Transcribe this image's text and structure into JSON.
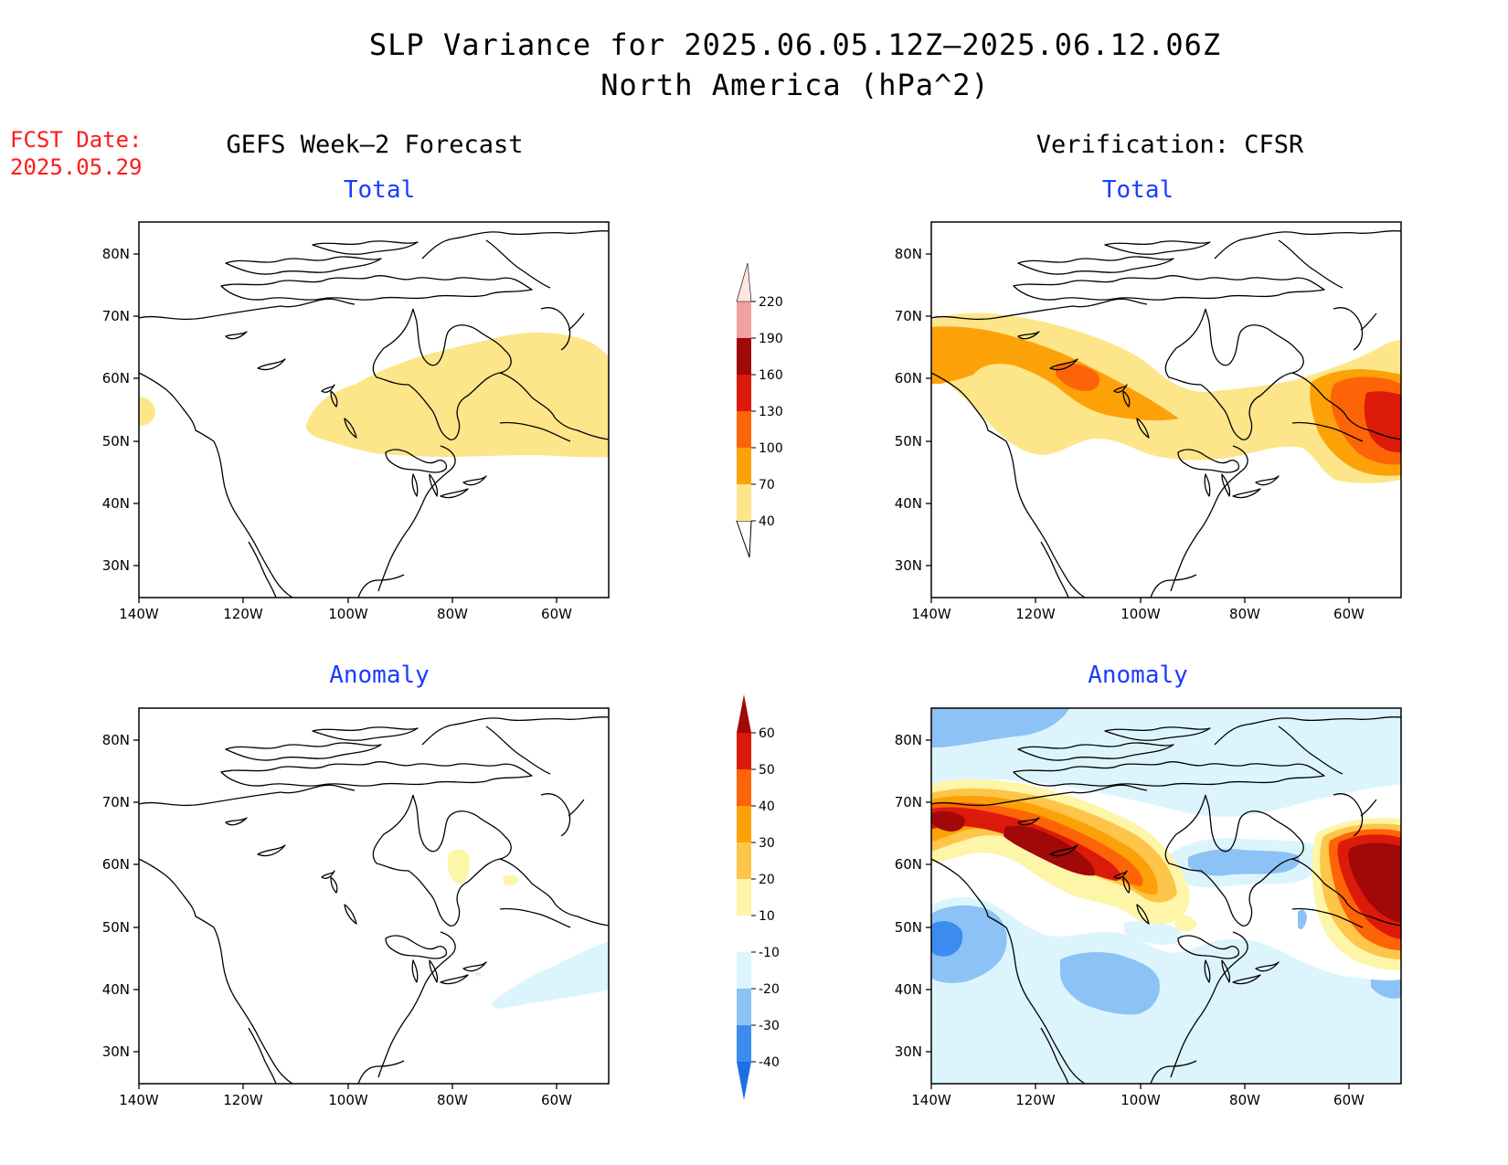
{
  "title": {
    "line1": "SLP Variance for 2025.06.05.12Z–2025.06.12.06Z",
    "line2": "North America (hPa^2)"
  },
  "fcst": {
    "label": "FCST Date:",
    "date": "2025.05.29"
  },
  "columns": {
    "left": "GEFS Week–2 Forecast",
    "right": "Verification: CFSR"
  },
  "panels": {
    "tl": "Total",
    "tr": "Total",
    "bl": "Anomaly",
    "br": "Anomaly"
  },
  "axes": {
    "lat_labels": [
      "80N",
      "70N",
      "60N",
      "50N",
      "40N",
      "30N"
    ],
    "lon_labels": [
      "140W",
      "120W",
      "100W",
      "80W",
      "60W"
    ]
  },
  "colorbar_total": {
    "levels": [
      "40",
      "70",
      "100",
      "130",
      "160",
      "190",
      "220"
    ],
    "colors": [
      "#fde58a",
      "#fda108",
      "#fd6408",
      "#dc1a0a",
      "#a10808",
      "#f2a1a1",
      "#fde5e0"
    ]
  },
  "colorbar_anomaly": {
    "levels": [
      "-40",
      "-30",
      "-20",
      "-10",
      "10",
      "20",
      "30",
      "40",
      "50",
      "60"
    ],
    "colors": [
      "#1e6fe6",
      "#3c8cf0",
      "#8cc2f5",
      "#dcf5fd",
      "#ffffff",
      "#fdf5a8",
      "#fdc54a",
      "#fda108",
      "#fd6408",
      "#dc1a0a",
      "#a10808"
    ]
  }
}
